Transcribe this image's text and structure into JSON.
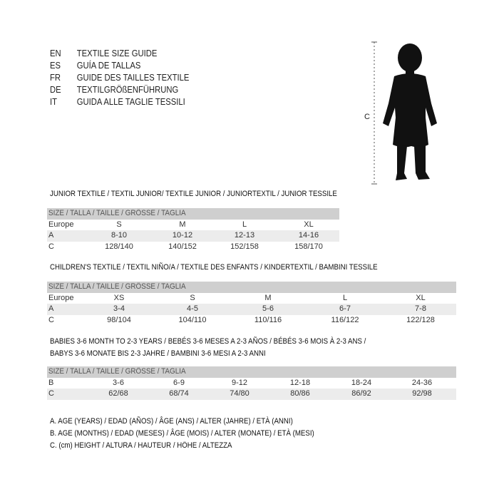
{
  "languages": [
    {
      "code": "EN",
      "text": "TEXTILE SIZE GUIDE"
    },
    {
      "code": "ES",
      "text": "GUÍA DE TALLAS"
    },
    {
      "code": "FR",
      "text": "GUIDE DES TAILLES TEXTILE"
    },
    {
      "code": "DE",
      "text": "TEXTILGRÖßENFÜHRUNG"
    },
    {
      "code": "IT",
      "text": "GUIDA ALLE TAGLIE TESSILI"
    }
  ],
  "figure": {
    "measure_label": "C",
    "icon": "child-silhouette"
  },
  "junior": {
    "title": "JUNIOR TEXTILE / TEXTIL JUNIOR/ TEXTILE JUNIOR / JUNIORTEXTIL / JUNIOR TESSILE",
    "header": "SIZE / TALLA / TAILLE / GRÖSSE / TAGLIA",
    "rows": [
      {
        "label": "Europe",
        "cells": [
          "S",
          "M",
          "L",
          "XL"
        ]
      },
      {
        "label": "A",
        "cells": [
          "8-10",
          "10-12",
          "12-13",
          "14-16"
        ]
      },
      {
        "label": "C",
        "cells": [
          "128/140",
          "140/152",
          "152/158",
          "158/170"
        ]
      }
    ]
  },
  "children": {
    "title": "CHILDREN'S TEXTILE / TEXTIL NIÑO/A / TEXTILE DES ENFANTS / KINDERTEXTIL / BAMBINI TESSILE",
    "header": "SIZE / TALLA / TAILLE / GRÖSSE / TAGLIA",
    "rows": [
      {
        "label": "Europe",
        "cells": [
          "XS",
          "S",
          "M",
          "L",
          "XL"
        ]
      },
      {
        "label": "A",
        "cells": [
          "3-4",
          "4-5",
          "5-6",
          "6-7",
          "7-8"
        ]
      },
      {
        "label": "C",
        "cells": [
          "98/104",
          "104/110",
          "110/116",
          "116/122",
          "122/128"
        ]
      }
    ]
  },
  "babies": {
    "title_line1": "BABIES 3-6 MONTH TO 2-3 YEARS / BEBÉS 3-6 MESES A 2-3 AÑOS / BÉBÉS 3-6 MOIS À 2-3 ANS /",
    "title_line2": "BABYS 3-6 MONATE BIS 2-3 JAHRE / BAMBINI 3-6 MESI A 2-3 ANNI",
    "header": "SIZE / TALLA / TAILLE / GRÖSSE / TAGLIA",
    "rows": [
      {
        "label": "B",
        "cells": [
          "3-6",
          "6-9",
          "9-12",
          "12-18",
          "18-24",
          "24-36"
        ]
      },
      {
        "label": "C",
        "cells": [
          "62/68",
          "68/74",
          "74/80",
          "80/86",
          "86/92",
          "92/98"
        ]
      }
    ]
  },
  "legend": [
    "A. AGE (YEARS) / EDAD (AÑOS) / ÂGE (ANS) / ALTER (JAHRE) / ETÀ (ANNI)",
    "B. AGE (MONTHS) / EDAD (MESES) / ÂGE (MOIS) / ALTER (MONATE) / ETÀ (MESI)",
    "C. (cm) HEIGHT / ALTURA / HAUTEUR / HÖHE / ALTEZZA"
  ]
}
